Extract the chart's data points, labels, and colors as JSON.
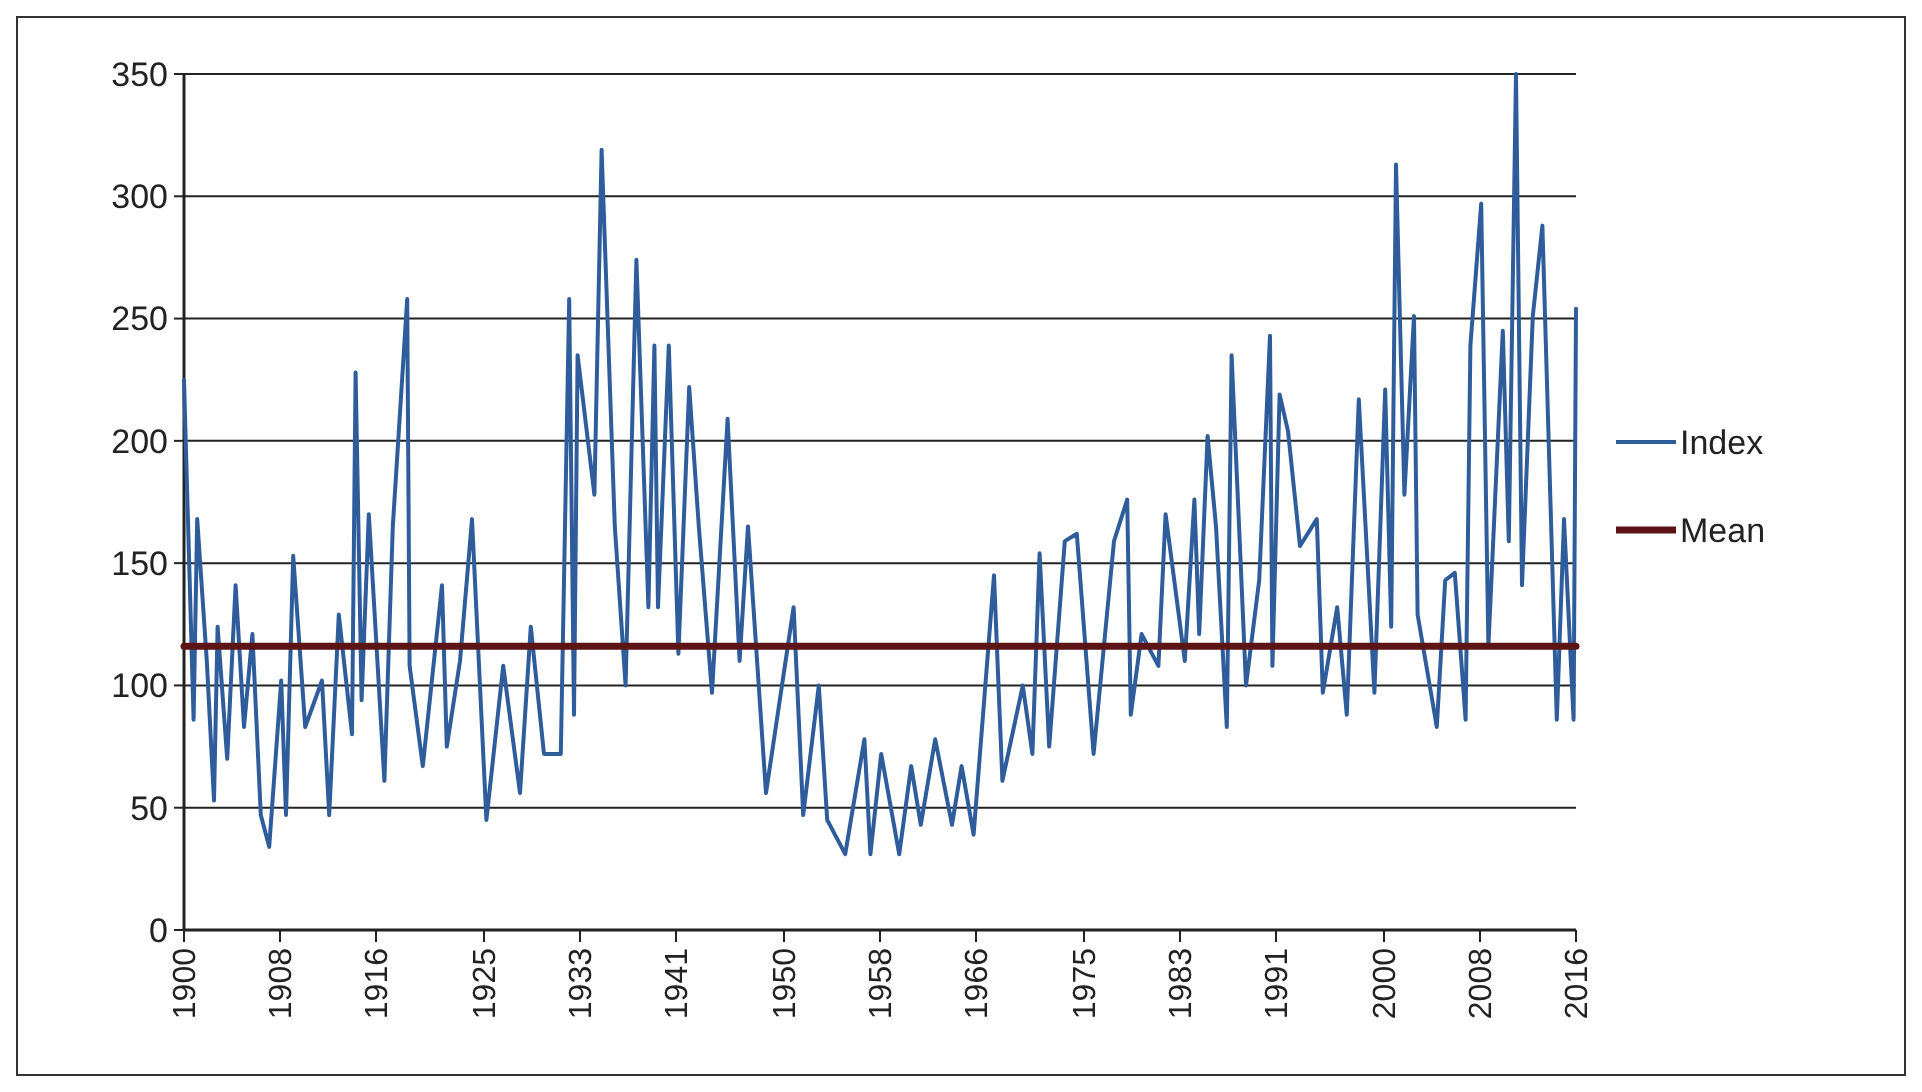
{
  "chart_data": {
    "type": "line",
    "xlim": [
      1900,
      2016
    ],
    "ylim": [
      0,
      350
    ],
    "yticks": [
      0,
      50,
      100,
      150,
      200,
      250,
      300,
      350
    ],
    "xticks": [
      1900,
      1908,
      1916,
      1925,
      1933,
      1941,
      1950,
      1958,
      1966,
      1975,
      1983,
      1991,
      2000,
      2008,
      2016
    ],
    "grid": "y",
    "legend": "right",
    "line_style": "solid",
    "marker": "none",
    "series": [
      {
        "name": "Index",
        "color": "#2f5d9c",
        "x": [
          1900,
          1900.8,
          1901.1,
          1901.9,
          1902.5,
          1902.8,
          1903.6,
          1904.3,
          1905.0,
          1905.7,
          1906.4,
          1907.1,
          1908.1,
          1908.5,
          1909.1,
          1910.1,
          1911.5,
          1912.1,
          1912.9,
          1914.0,
          1914.3,
          1914.8,
          1915.4,
          1916.7,
          1917.4,
          1918.6,
          1918.8,
          1919.9,
          1921.5,
          1921.9,
          1923.0,
          1924.0,
          1925.2,
          1926.6,
          1928.0,
          1928.9,
          1930.0,
          1931.4,
          1932.1,
          1932.5,
          1932.8,
          1934.2,
          1934.8,
          1935.9,
          1936.8,
          1937.7,
          1938.7,
          1939.2,
          1939.5,
          1940.4,
          1941.2,
          1942.1,
          1942.9,
          1944.0,
          1945.3,
          1946.3,
          1947.0,
          1948.5,
          1950.8,
          1951.6,
          1952.9,
          1953.6,
          1955.1,
          1956.7,
          1957.2,
          1958.1,
          1959.6,
          1960.6,
          1961.4,
          1962.6,
          1964.0,
          1964.8,
          1965.8,
          1967.5,
          1968.2,
          1969.9,
          1970.7,
          1971.3,
          1972.1,
          1973.4,
          1974.4,
          1975.8,
          1977.5,
          1978.6,
          1978.9,
          1979.8,
          1981.2,
          1981.8,
          1983.4,
          1984.2,
          1984.6,
          1985.3,
          1986.0,
          1986.9,
          1987.3,
          1988.5,
          1989.6,
          1990.5,
          1990.7,
          1991.3,
          1992.0,
          1993.0,
          1994.4,
          1994.9,
          1996.1,
          1996.9,
          1997.9,
          1999.2,
          2000.1,
          2000.6,
          2001.0,
          2001.7,
          2002.5,
          2002.8,
          2004.4,
          2005.1,
          2005.9,
          2006.8,
          2007.2,
          2008.1,
          2008.7,
          2009.9,
          2010.4,
          2011.0,
          2011.5,
          2012.4,
          2013.2,
          2014.4,
          2015.0,
          2015.8,
          2016
        ],
        "values": [
          225,
          86,
          168,
          110,
          53,
          124,
          70,
          141,
          83,
          121,
          47,
          34,
          102,
          47,
          153,
          83,
          102,
          47,
          129,
          80,
          228,
          94,
          170,
          61,
          165,
          258,
          108,
          67,
          141,
          75,
          110,
          168,
          45,
          108,
          56,
          124,
          72,
          72,
          258,
          88,
          235,
          178,
          319,
          165,
          100,
          274,
          132,
          239,
          132,
          239,
          113,
          222,
          165,
          97,
          209,
          110,
          165,
          56,
          132,
          47,
          100,
          45,
          31,
          78,
          31,
          72,
          31,
          67,
          43,
          78,
          43,
          67,
          39,
          145,
          61,
          100,
          72,
          154,
          75,
          159,
          162,
          72,
          159,
          176,
          88,
          121,
          108,
          170,
          110,
          176,
          121,
          202,
          165,
          83,
          235,
          100,
          143,
          243,
          108,
          219,
          204,
          157,
          168,
          97,
          132,
          88,
          217,
          97,
          221,
          124,
          313,
          178,
          251,
          129,
          83,
          143,
          146,
          86,
          239,
          297,
          116,
          245,
          159,
          350,
          141,
          251,
          288,
          86,
          168,
          86,
          254
        ]
      },
      {
        "name": "Mean",
        "color": "#5c1414",
        "x": [
          1900,
          2016
        ],
        "values": [
          116,
          116
        ]
      }
    ]
  }
}
